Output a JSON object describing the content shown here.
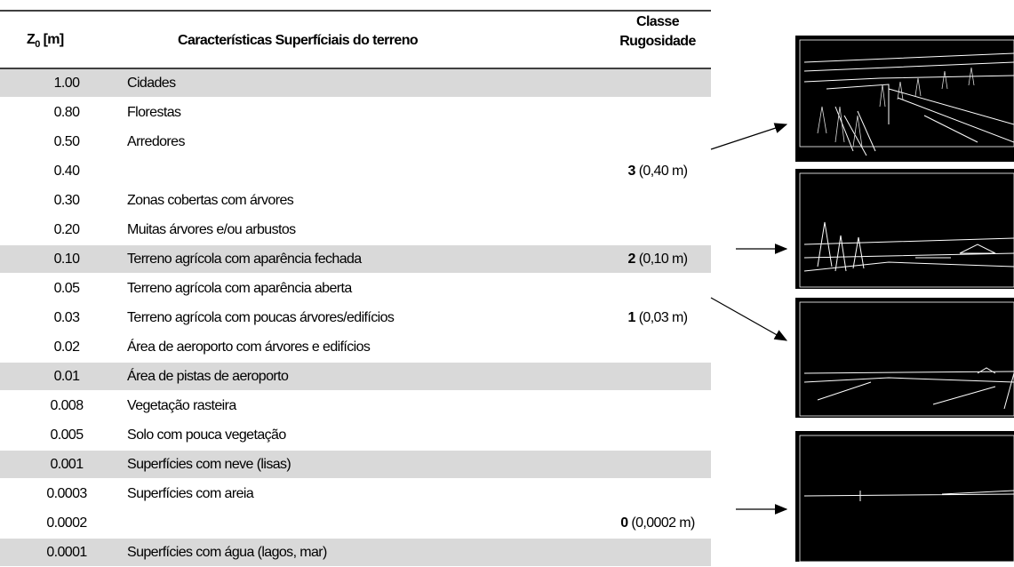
{
  "table": {
    "header": {
      "z0_symbol": "Z",
      "z0_subscript": "0",
      "z0_unit": "[m]",
      "description": "Características Superfíciais do terreno",
      "class_line1": "Classe",
      "class_line2": "Rugosidade"
    },
    "rows": [
      {
        "z0": "1.00",
        "description": "Cidades",
        "shaded": true
      },
      {
        "z0": "0.80",
        "description": "Florestas"
      },
      {
        "z0": "0.50",
        "description": "Arredores"
      },
      {
        "z0": "0.40",
        "class": "3",
        "class_detail": "(0,40 m)"
      },
      {
        "z0": "0.30",
        "description": "Zonas cobertas com árvores"
      },
      {
        "z0": "0.20",
        "description": "Muitas árvores e/ou arbustos"
      },
      {
        "z0": "0.10",
        "description": "Terreno agrícola com aparência fechada",
        "class": "2",
        "class_detail": "(0,10 m)",
        "shaded": true
      },
      {
        "z0": "0.05",
        "description": "Terreno agrícola com aparência aberta"
      },
      {
        "z0": "0.03",
        "description": "Terreno agrícola com poucas árvores/edifícios",
        "class": "1",
        "class_detail": "(0,03 m)"
      },
      {
        "z0": "0.02",
        "description": "Área de aeroporto com árvores e edifícios"
      },
      {
        "z0": "0.01",
        "description": "Área de pistas de aeroporto",
        "shaded": true
      },
      {
        "z0": "0.008",
        "description": "Vegetação rasteira"
      },
      {
        "z0": "0.005",
        "description": "Solo  com pouca vegetação"
      },
      {
        "z0": "0.001",
        "description": "Superfícies com neve (lisas)",
        "shaded": true
      },
      {
        "z0": "0.0003",
        "description": "Superfícies com areia"
      },
      {
        "z0": "0.0002",
        "class": "0",
        "class_detail": "(0,0002 m)"
      },
      {
        "z0": "0.0001",
        "description": "Superfícies com água (lagos, mar)",
        "shaded": true
      }
    ]
  }
}
